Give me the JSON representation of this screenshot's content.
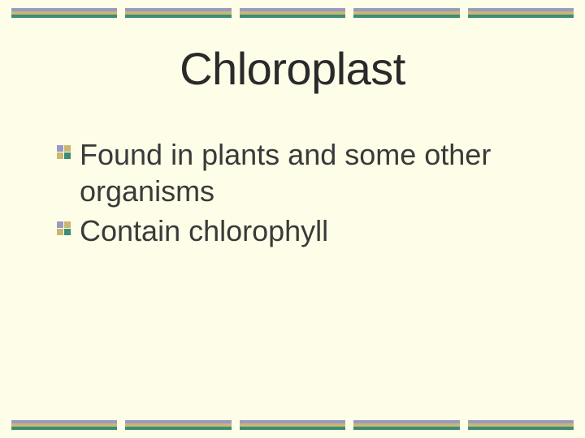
{
  "slide": {
    "title": "Chloroplast",
    "bullets": [
      "Found in plants and some other organisms",
      "Contain chlorophyll"
    ]
  },
  "style": {
    "background_color": "#fefee8",
    "title_fontsize": 56,
    "title_color": "#2a2a2a",
    "body_fontsize": 36,
    "body_color": "#3a3a3a",
    "border_segments": 5,
    "border_stripe_colors": [
      "#9a9ac0",
      "#c9b772",
      "#3d8d74"
    ],
    "border_stripe_height": 4,
    "segment_gap": 10,
    "bullet_quadrant_colors": [
      "#9a9ac0",
      "#c9b772",
      "#c9b772",
      "#3d8d74"
    ]
  }
}
